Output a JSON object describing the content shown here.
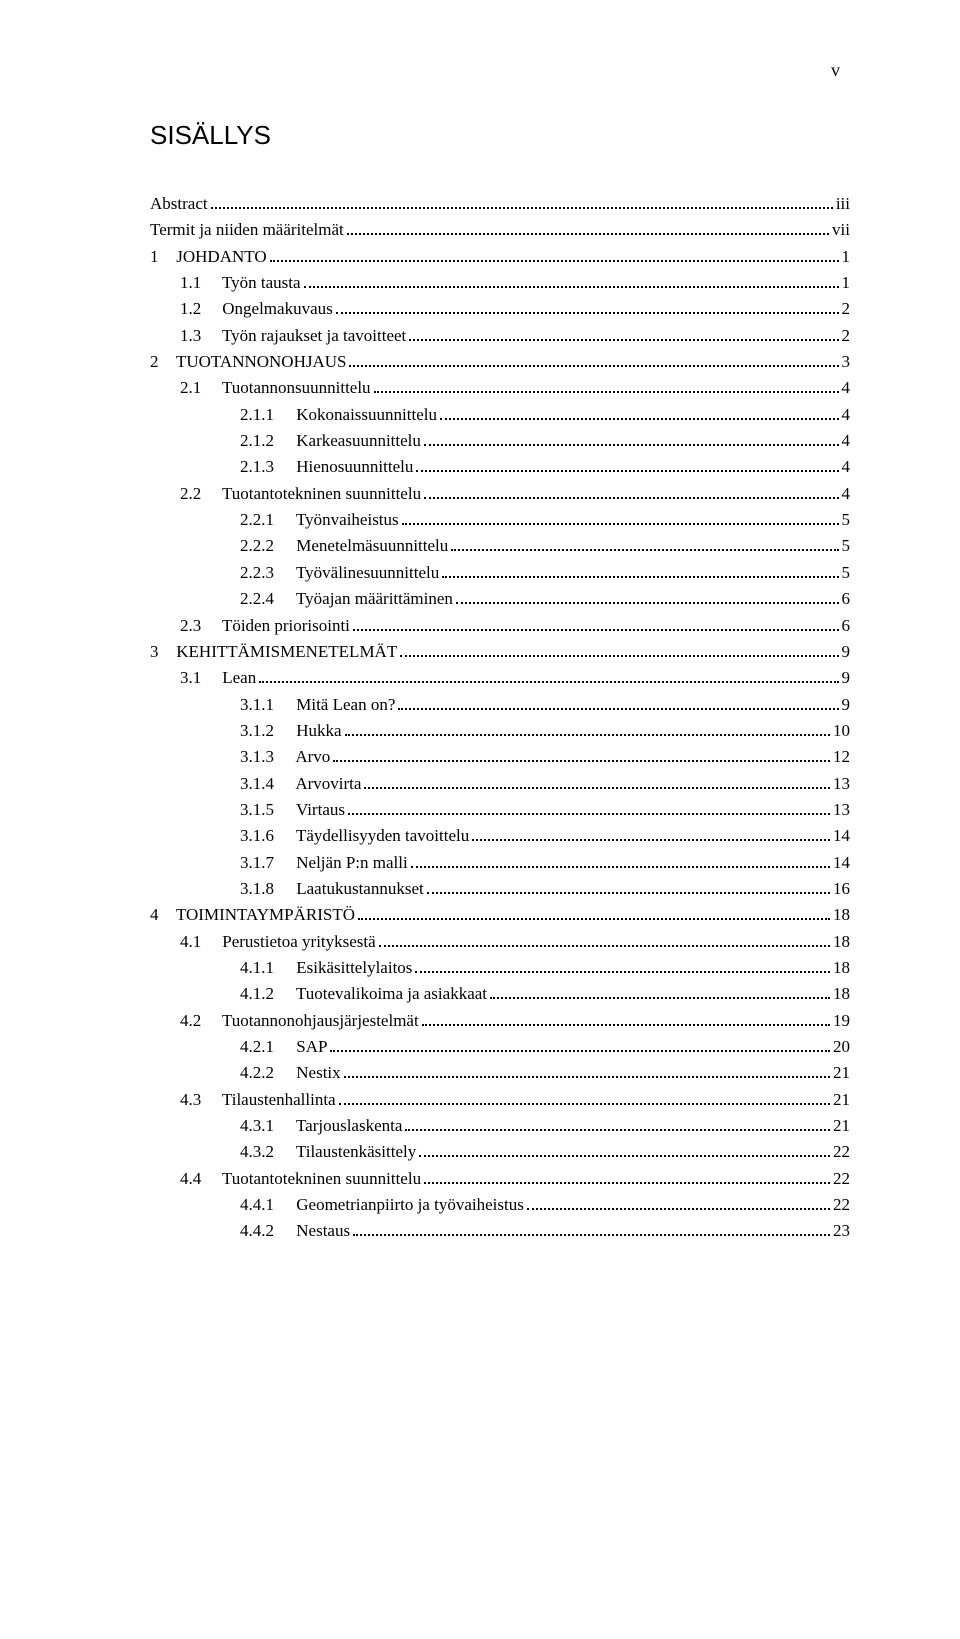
{
  "page_roman": "v",
  "heading": "SISÄLLYS",
  "toc": [
    {
      "level": 0,
      "num": "",
      "title": "Abstract",
      "page": "iii"
    },
    {
      "level": 0,
      "num": "",
      "title": "Termit ja niiden määritelmät",
      "page": "vii"
    },
    {
      "level": 0,
      "num": "1",
      "title": "JOHDANTO",
      "page": "1"
    },
    {
      "level": 1,
      "num": "1.1",
      "title": "Työn tausta",
      "page": "1"
    },
    {
      "level": 1,
      "num": "1.2",
      "title": "Ongelmakuvaus",
      "page": "2"
    },
    {
      "level": 1,
      "num": "1.3",
      "title": "Työn rajaukset ja tavoitteet",
      "page": "2"
    },
    {
      "level": 0,
      "num": "2",
      "title": "TUOTANNONOHJAUS",
      "page": "3"
    },
    {
      "level": 1,
      "num": "2.1",
      "title": "Tuotannonsuunnittelu",
      "page": "4"
    },
    {
      "level": 2,
      "num": "2.1.1",
      "title": "Kokonaissuunnittelu",
      "page": "4"
    },
    {
      "level": 2,
      "num": "2.1.2",
      "title": "Karkeasuunnittelu",
      "page": "4"
    },
    {
      "level": 2,
      "num": "2.1.3",
      "title": "Hienosuunnittelu",
      "page": "4"
    },
    {
      "level": 1,
      "num": "2.2",
      "title": "Tuotantotekninen suunnittelu",
      "page": "4"
    },
    {
      "level": 2,
      "num": "2.2.1",
      "title": "Työnvaiheistus",
      "page": "5"
    },
    {
      "level": 2,
      "num": "2.2.2",
      "title": "Menetelmäsuunnittelu",
      "page": "5"
    },
    {
      "level": 2,
      "num": "2.2.3",
      "title": "Työvälinesuunnittelu",
      "page": "5"
    },
    {
      "level": 2,
      "num": "2.2.4",
      "title": "Työajan määrittäminen",
      "page": "6"
    },
    {
      "level": 1,
      "num": "2.3",
      "title": "Töiden priorisointi",
      "page": "6"
    },
    {
      "level": 0,
      "num": "3",
      "title": "KEHITTÄMISMENETELMÄT",
      "page": "9"
    },
    {
      "level": 1,
      "num": "3.1",
      "title": "Lean",
      "page": "9"
    },
    {
      "level": 2,
      "num": "3.1.1",
      "title": "Mitä Lean on?",
      "page": "9"
    },
    {
      "level": 2,
      "num": "3.1.2",
      "title": "Hukka",
      "page": "10"
    },
    {
      "level": 2,
      "num": "3.1.3",
      "title": "Arvo",
      "page": "12"
    },
    {
      "level": 2,
      "num": "3.1.4",
      "title": "Arvovirta",
      "page": "13"
    },
    {
      "level": 2,
      "num": "3.1.5",
      "title": "Virtaus",
      "page": "13"
    },
    {
      "level": 2,
      "num": "3.1.6",
      "title": "Täydellisyyden tavoittelu",
      "page": "14"
    },
    {
      "level": 2,
      "num": "3.1.7",
      "title": "Neljän P:n malli",
      "page": "14"
    },
    {
      "level": 2,
      "num": "3.1.8",
      "title": "Laatukustannukset",
      "page": "16"
    },
    {
      "level": 0,
      "num": "4",
      "title": "TOIMINTAYMPÄRISTÖ",
      "page": "18"
    },
    {
      "level": 1,
      "num": "4.1",
      "title": "Perustietoa yrityksestä",
      "page": "18"
    },
    {
      "level": 2,
      "num": "4.1.1",
      "title": "Esikäsittelylaitos",
      "page": "18"
    },
    {
      "level": 2,
      "num": "4.1.2",
      "title": "Tuotevalikoima ja asiakkaat",
      "page": "18"
    },
    {
      "level": 1,
      "num": "4.2",
      "title": "Tuotannonohjausjärjestelmät",
      "page": "19"
    },
    {
      "level": 2,
      "num": "4.2.1",
      "title": "SAP",
      "page": "20"
    },
    {
      "level": 2,
      "num": "4.2.2",
      "title": "Nestix",
      "page": "21"
    },
    {
      "level": 1,
      "num": "4.3",
      "title": "Tilaustenhallinta",
      "page": "21"
    },
    {
      "level": 2,
      "num": "4.3.1",
      "title": "Tarjouslaskenta",
      "page": "21"
    },
    {
      "level": 2,
      "num": "4.3.2",
      "title": "Tilaustenkäsittely",
      "page": "22"
    },
    {
      "level": 1,
      "num": "4.4",
      "title": "Tuotantotekninen suunnittelu",
      "page": "22"
    },
    {
      "level": 2,
      "num": "4.4.1",
      "title": "Geometrianpiirto ja työvaiheistus",
      "page": "22"
    },
    {
      "level": 2,
      "num": "4.4.2",
      "title": "Nestaus",
      "page": "23"
    }
  ]
}
